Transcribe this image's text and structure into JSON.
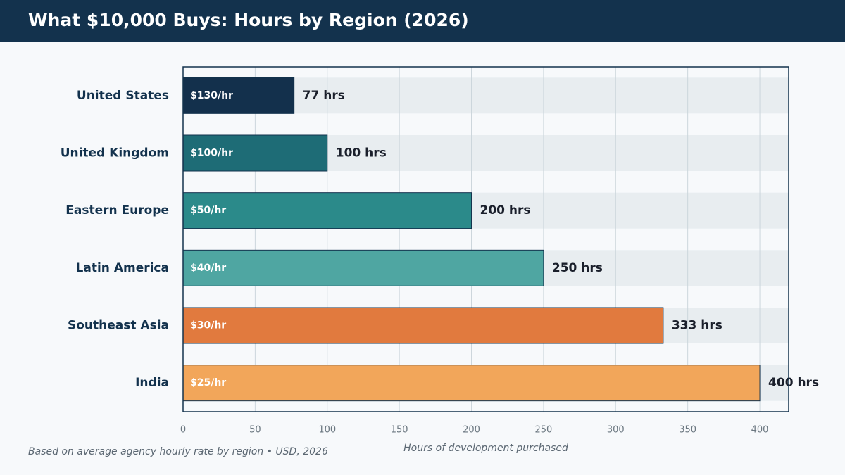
{
  "header": {
    "title": "What $10,000 Buys: Hours by Region (2026)"
  },
  "footnote": "Based on average agency hourly rate by region  •  USD, 2026",
  "colors": {
    "header_bg": "#13324d",
    "track": "#e8edf0",
    "grid": "#ccd6dc",
    "frame": "#13324d",
    "category_text": "#13324d",
    "value_text": "#1a1f2b",
    "axis_text": "#6b7780"
  },
  "chart_data": {
    "type": "bar",
    "orientation": "horizontal",
    "title": "What $10,000 Buys: Hours by Region (2026)",
    "xlabel": "Hours of development purchased",
    "ylabel": "",
    "xlim": [
      0,
      420
    ],
    "xticks": [
      0,
      50,
      100,
      150,
      200,
      250,
      300,
      350,
      400
    ],
    "grid": true,
    "categories": [
      "United States",
      "United Kingdom",
      "Eastern Europe",
      "Latin America",
      "Southeast Asia",
      "India"
    ],
    "values": [
      77,
      100,
      200,
      250,
      333,
      400
    ],
    "value_labels": [
      "77 hrs",
      "100 hrs",
      "200 hrs",
      "250 hrs",
      "333 hrs",
      "400 hrs"
    ],
    "rate_labels": [
      "$130/hr",
      "$100/hr",
      "$50/hr",
      "$40/hr",
      "$30/hr",
      "$25/hr"
    ],
    "bar_colors": [
      "#13304c",
      "#1e6c76",
      "#2b8a8a",
      "#4fa6a2",
      "#e17a3e",
      "#f2a65a"
    ]
  }
}
